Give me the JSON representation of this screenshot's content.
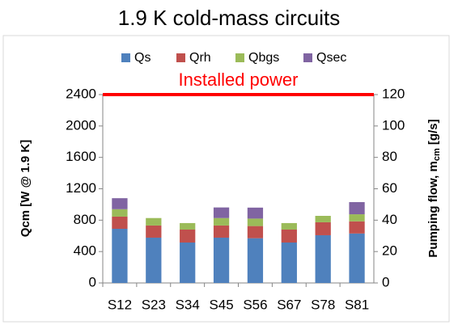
{
  "chart_data": {
    "type": "stacked_bar",
    "title": "1.9 K cold-mass circuits",
    "ylabel": "Qcm [W @ 1.9 K]",
    "y2label": [
      "Pumping flow, m",
      "cm",
      " [g/s]"
    ],
    "categories": [
      "S12",
      "S23",
      "S34",
      "S45",
      "S56",
      "S67",
      "S78",
      "S81"
    ],
    "series": [
      {
        "name": "Qs",
        "color": "#4f81bd",
        "values": [
          690,
          577,
          515,
          577,
          570,
          515,
          608,
          630
        ]
      },
      {
        "name": "Qrh",
        "color": "#c0504d",
        "values": [
          155,
          155,
          165,
          155,
          155,
          165,
          165,
          155
        ]
      },
      {
        "name": "Qbgs",
        "color": "#9bbb59",
        "values": [
          95,
          95,
          83,
          95,
          95,
          83,
          82,
          90
        ]
      },
      {
        "name": "Qsec",
        "color": "#8064a2",
        "values": [
          140,
          0,
          0,
          135,
          140,
          0,
          0,
          155
        ]
      }
    ],
    "ylim": [
      0,
      2400
    ],
    "yticks": [
      0,
      400,
      800,
      1200,
      1600,
      2000,
      2400
    ],
    "y2lim": [
      0,
      120
    ],
    "y2ticks": [
      0,
      20,
      40,
      60,
      80,
      100,
      120
    ],
    "grid": false,
    "legend": "top",
    "annotation": {
      "text": "Installed power",
      "value": 2400,
      "color": "#ff0000"
    }
  }
}
